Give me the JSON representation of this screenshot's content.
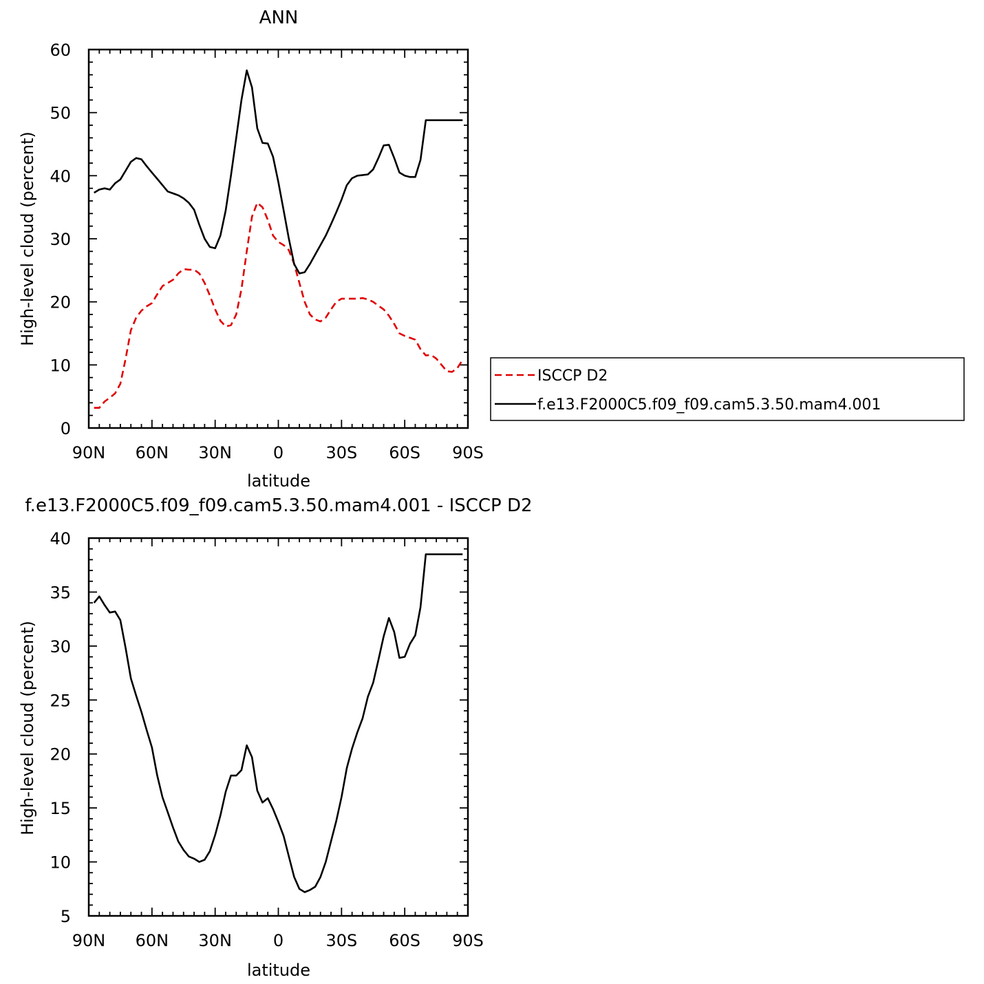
{
  "chart_data": [
    {
      "type": "line",
      "title": "ANN",
      "xlabel": "latitude",
      "ylabel": "High-level cloud (percent)",
      "xlim": [
        90,
        -90
      ],
      "ylim": [
        0,
        60
      ],
      "x_tick_labels": [
        "90N",
        "60N",
        "30N",
        "0",
        "30S",
        "60S",
        "90S"
      ],
      "x_tick_values": [
        90,
        60,
        30,
        0,
        -30,
        -60,
        -90
      ],
      "y_tick_values": [
        0,
        10,
        20,
        30,
        40,
        50,
        60
      ],
      "legend_position": "right",
      "series": [
        {
          "name": "ISCCP D2",
          "color": "#e00000",
          "dash": "dashed",
          "x": [
            87.5,
            85,
            82.5,
            80,
            77.5,
            75,
            72.5,
            70,
            67.5,
            65,
            62.5,
            60,
            57.5,
            55,
            52.5,
            50,
            47.5,
            45,
            42.5,
            40,
            37.5,
            35,
            32.5,
            30,
            27.5,
            25,
            22.5,
            20,
            17.5,
            15,
            12.5,
            10,
            7.5,
            5,
            2.5,
            0,
            -2.5,
            -5,
            -7.5,
            -10,
            -12.5,
            -15,
            -17.5,
            -20,
            -22.5,
            -25,
            -27.5,
            -30,
            -32.5,
            -35,
            -37.5,
            -40,
            -42.5,
            -45,
            -47.5,
            -50,
            -52.5,
            -55,
            -57.5,
            -60,
            -62.5,
            -65,
            -67.5,
            -70,
            -72.5,
            -75,
            -77.5,
            -80,
            -82.5,
            -85,
            -87.5
          ],
          "y": [
            3.2,
            3.2,
            4.2,
            4.8,
            5.5,
            7,
            11,
            15.5,
            17.5,
            18.6,
            19.3,
            19.8,
            21.2,
            22.5,
            23,
            23.5,
            24.5,
            25.2,
            25.1,
            25.1,
            24.5,
            23,
            21,
            18.8,
            17,
            16.1,
            16.3,
            18,
            22,
            28,
            33.5,
            35.7,
            35,
            33,
            30.5,
            29.5,
            29,
            28.2,
            26,
            23,
            20,
            18,
            17.2,
            16.9,
            17.5,
            18.8,
            20,
            20.5,
            20.5,
            20.5,
            20.5,
            20.6,
            20.4,
            20,
            19.4,
            18.8,
            17.8,
            16.5,
            15,
            14.6,
            14.3,
            14,
            12.5,
            11.5,
            11.6,
            11,
            10,
            9,
            8.9,
            9.5,
            10.8
          ]
        },
        {
          "name": "f.e13.F2000C5.f09_f09.cam5.3.50.mam4.001",
          "color": "#000000",
          "dash": "solid",
          "x": [
            87.5,
            85,
            82.5,
            80,
            77.5,
            75,
            72.5,
            70,
            67.5,
            65,
            62.5,
            60,
            57.5,
            55,
            52.5,
            50,
            47.5,
            45,
            42.5,
            40,
            37.5,
            35,
            32.5,
            30,
            27.5,
            25,
            22.5,
            20,
            17.5,
            15,
            12.5,
            10,
            7.5,
            5,
            2.5,
            0,
            -2.5,
            -5,
            -7.5,
            -10,
            -12.5,
            -15,
            -17.5,
            -20,
            -22.5,
            -25,
            -27.5,
            -30,
            -32.5,
            -35,
            -37.5,
            -40,
            -42.5,
            -45,
            -47.5,
            -50,
            -52.5,
            -55,
            -57.5,
            -60,
            -62.5,
            -65,
            -67.5,
            -70,
            -72.5,
            -75,
            -77.5,
            -80,
            -82.5,
            -85,
            -87.5
          ],
          "y": [
            37.3,
            37.8,
            38,
            37.8,
            38.8,
            39.4,
            40.8,
            42.2,
            42.8,
            42.6,
            41.5,
            40.5,
            39.5,
            38.5,
            37.5,
            37.2,
            36.9,
            36.4,
            35.7,
            34.6,
            32.2,
            30,
            28.7,
            28.5,
            30.5,
            34.5,
            40,
            46,
            52,
            56.7,
            54,
            47.5,
            45.2,
            45.1,
            43,
            39,
            34.5,
            30,
            26,
            24.5,
            24.7,
            26,
            27.5,
            29,
            30.5,
            32.3,
            34.2,
            36.2,
            38.5,
            39.6,
            40,
            40.1,
            40.2,
            41,
            42.8,
            44.8,
            44.9,
            42.8,
            40.5,
            40,
            39.8,
            39.8,
            42.5,
            48.8,
            48.8,
            48.8,
            48.8,
            48.8,
            48.8,
            48.8,
            48.8
          ]
        }
      ]
    },
    {
      "type": "line",
      "title": "f.e13.F2000C5.f09_f09.cam5.3.50.mam4.001 - ISCCP D2",
      "xlabel": "latitude",
      "ylabel": "High-level cloud (percent)",
      "xlim": [
        90,
        -90
      ],
      "ylim": [
        5,
        40
      ],
      "x_tick_labels": [
        "90N",
        "60N",
        "30N",
        "0",
        "30S",
        "60S",
        "90S"
      ],
      "x_tick_values": [
        90,
        60,
        30,
        0,
        -30,
        -60,
        -90
      ],
      "y_tick_values": [
        5,
        10,
        15,
        20,
        25,
        30,
        35,
        40
      ],
      "series": [
        {
          "color": "#000000",
          "dash": "solid",
          "x": [
            87.5,
            85,
            82.5,
            80,
            77.5,
            75,
            72.5,
            70,
            67.5,
            65,
            62.5,
            60,
            57.5,
            55,
            52.5,
            50,
            47.5,
            45,
            42.5,
            40,
            37.5,
            35,
            32.5,
            30,
            27.5,
            25,
            22.5,
            20,
            17.5,
            15,
            12.5,
            10,
            7.5,
            5,
            2.5,
            0,
            -2.5,
            -5,
            -7.5,
            -10,
            -12.5,
            -15,
            -17.5,
            -20,
            -22.5,
            -25,
            -27.5,
            -30,
            -32.5,
            -35,
            -37.5,
            -40,
            -42.5,
            -45,
            -47.5,
            -50,
            -52.5,
            -55,
            -57.5,
            -60,
            -62.5,
            -65,
            -67.5,
            -70,
            -72.5,
            -75,
            -77.5,
            -80,
            -82.5,
            -85,
            -87.5
          ],
          "y": [
            34,
            34.6,
            33.8,
            33.1,
            33.2,
            32.4,
            29.8,
            27,
            25.4,
            23.9,
            22.2,
            20.6,
            18,
            16,
            14.6,
            13.2,
            11.9,
            11.1,
            10.5,
            10.3,
            10,
            10.2,
            11,
            12.5,
            14.3,
            16.5,
            18,
            18,
            18.5,
            20.8,
            19.7,
            16.6,
            15.5,
            15.9,
            14.9,
            13.7,
            12.4,
            10.5,
            8.6,
            7.5,
            7.2,
            7.4,
            7.7,
            8.6,
            10,
            11.9,
            13.8,
            16,
            18.7,
            20.5,
            22,
            23.3,
            25.3,
            26.6,
            28.7,
            30.9,
            32.6,
            31.3,
            28.9,
            29,
            30.2,
            31,
            33.6,
            38.5,
            38.5,
            38.5,
            38.5,
            38.5,
            38.5,
            38.5,
            38.5
          ]
        }
      ]
    }
  ]
}
